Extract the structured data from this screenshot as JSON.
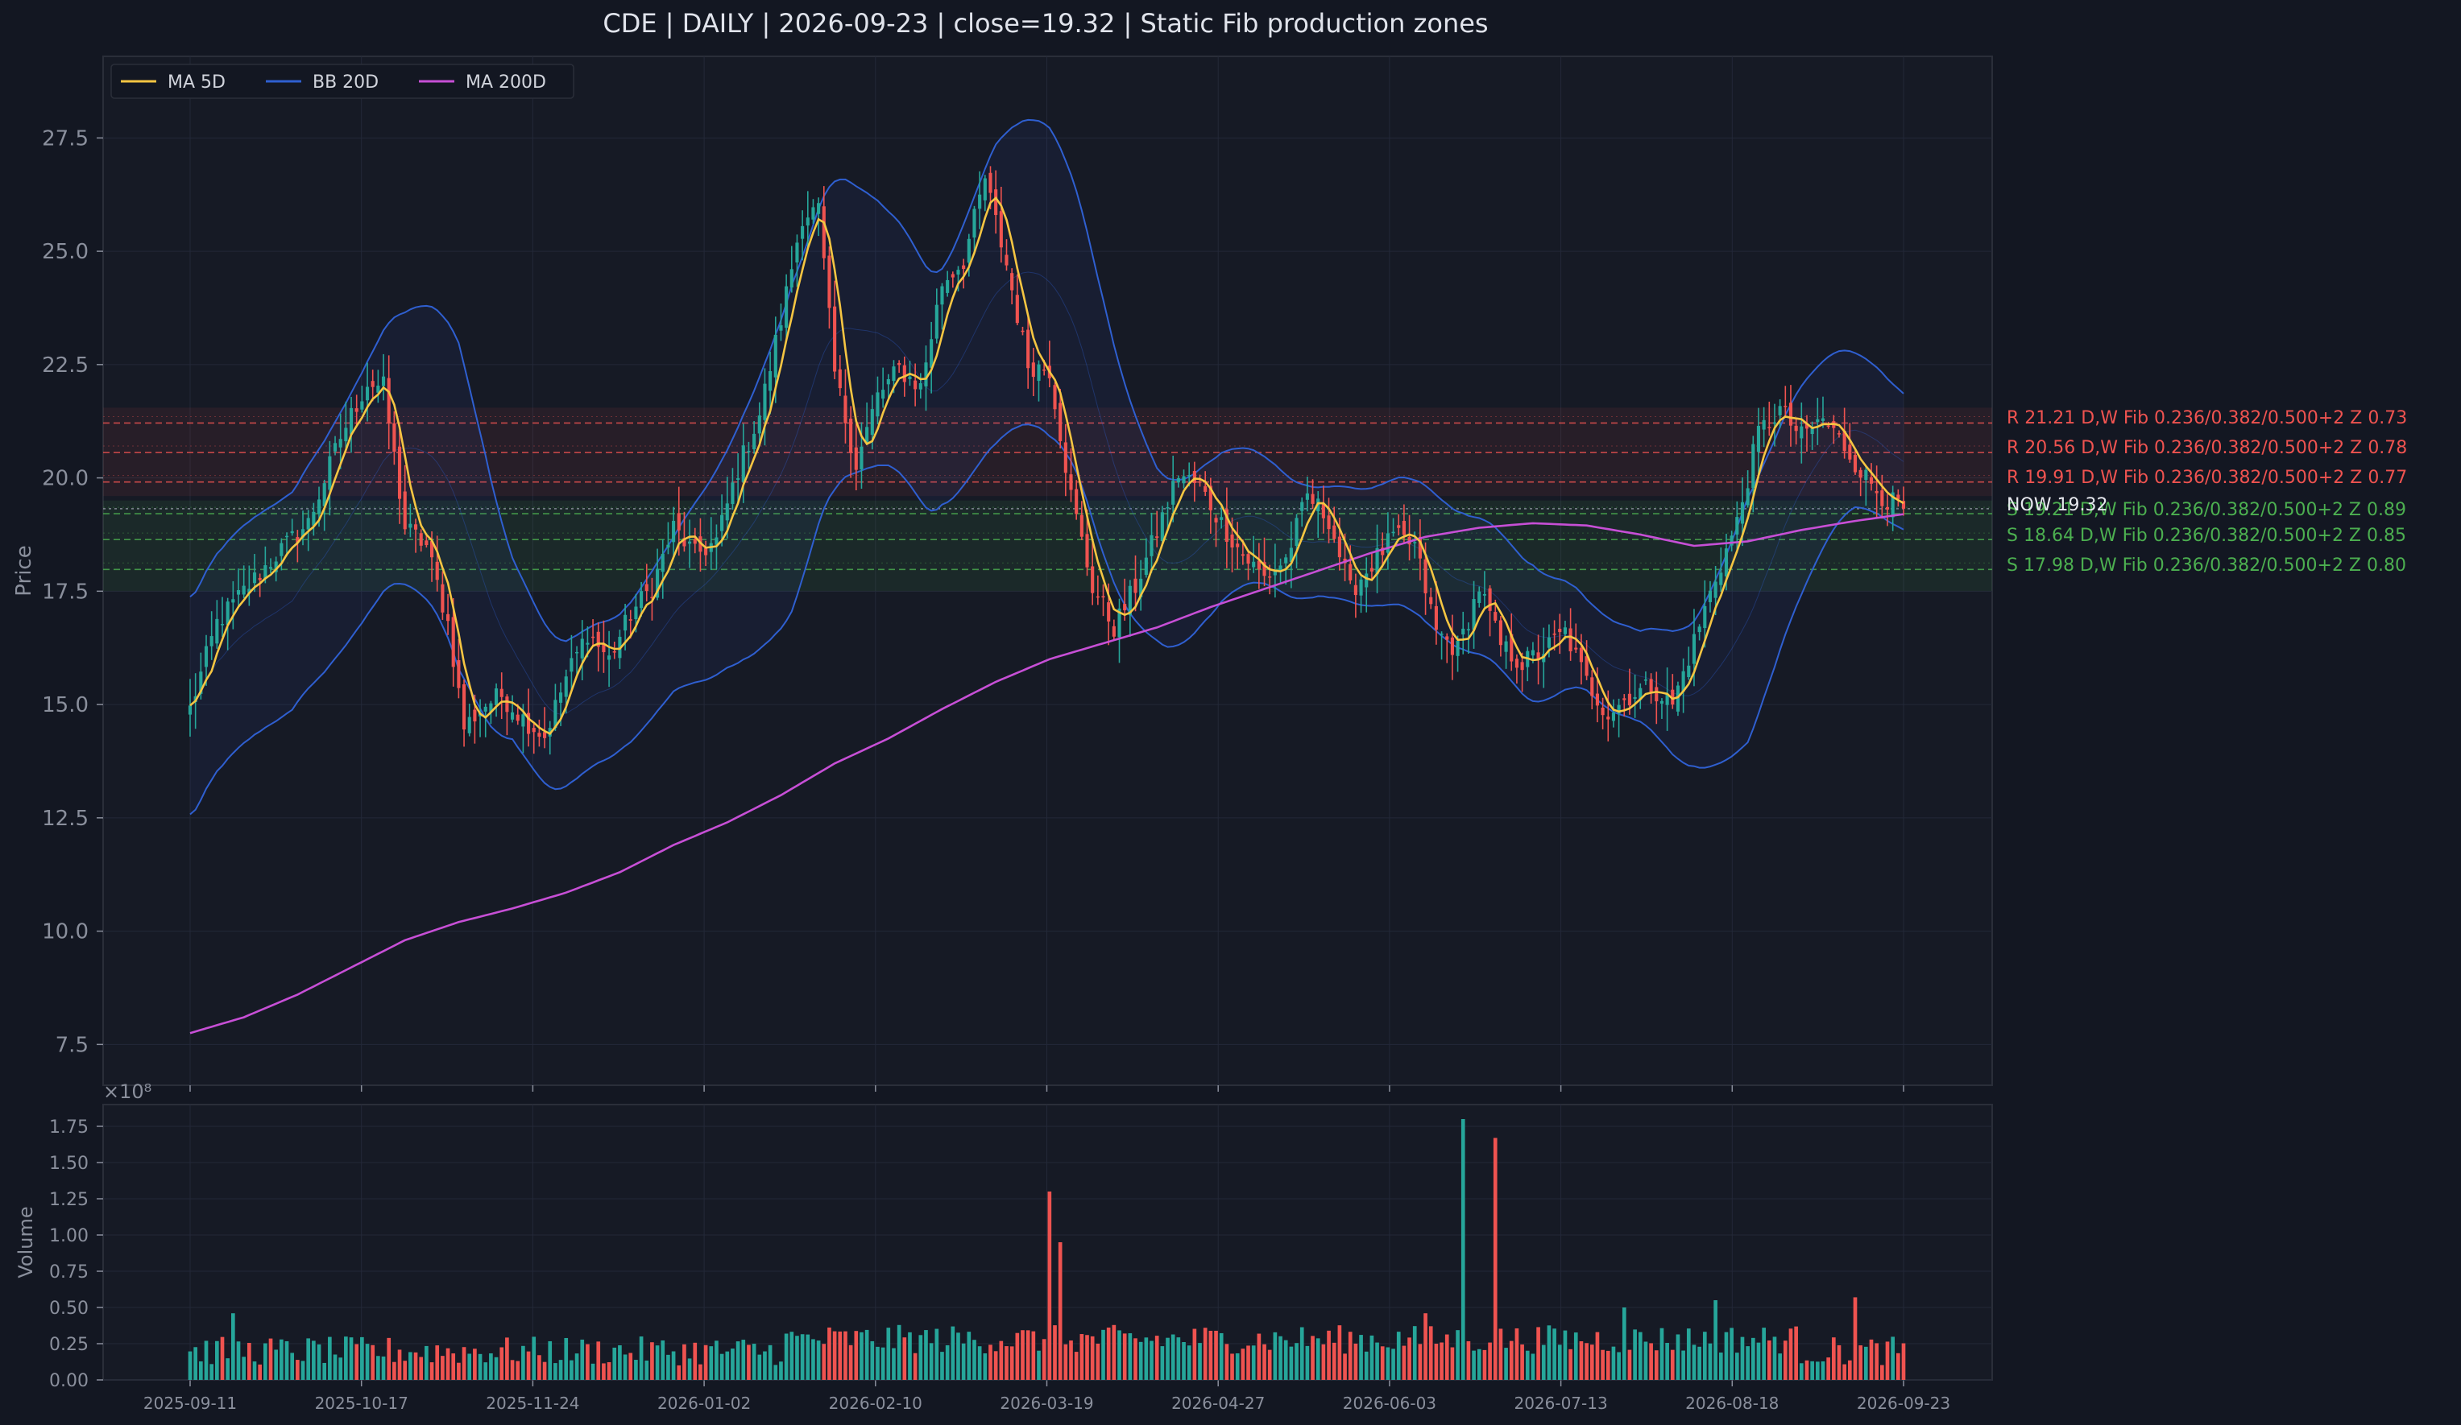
{
  "chart_data": {
    "type": "candlestick",
    "title": "CDE  |  DAILY  |  2026-09-23  |  close=19.32  |  Static Fib production zones",
    "price_panel": {
      "ylabel": "Price",
      "ylim": [
        6.6,
        29.3
      ],
      "yticks": [
        "7.5",
        "10.0",
        "12.5",
        "15.0",
        "17.5",
        "20.0",
        "22.5",
        "25.0",
        "27.5"
      ],
      "grid": true,
      "legend_position": "upper-left",
      "legend": [
        {
          "label": "MA 5D",
          "color": "#f5c542"
        },
        {
          "label": "BB 20D",
          "color": "#2f5fd0"
        },
        {
          "label": "MA 200D",
          "color": "#c74fd6"
        }
      ]
    },
    "volume_panel": {
      "ylabel": "Volume",
      "multiplier": "×10⁸",
      "ylim": [
        0,
        1.9
      ],
      "yticks": [
        "0.00",
        "0.25",
        "0.50",
        "0.75",
        "1.00",
        "1.25",
        "1.50",
        "1.75"
      ]
    },
    "xticks": [
      "2025-09-11",
      "2025-10-17",
      "2025-11-24",
      "2026-01-02",
      "2026-02-10",
      "2026-03-19",
      "2026-04-27",
      "2026-06-03",
      "2026-07-13",
      "2026-08-18",
      "2026-09-23"
    ],
    "close_path": [
      [
        0,
        14.9
      ],
      [
        5,
        16.8
      ],
      [
        10,
        17.5
      ],
      [
        16,
        18.3
      ],
      [
        22,
        19.0
      ],
      [
        28,
        20.9
      ],
      [
        33,
        22.1
      ],
      [
        36,
        22.0
      ],
      [
        40,
        18.9
      ],
      [
        44,
        18.5
      ],
      [
        48,
        16.8
      ],
      [
        51,
        14.5
      ],
      [
        55,
        15.0
      ],
      [
        58,
        15.2
      ],
      [
        62,
        14.7
      ],
      [
        66,
        14.3
      ],
      [
        70,
        15.6
      ],
      [
        74,
        16.6
      ],
      [
        78,
        16.0
      ],
      [
        82,
        17.0
      ],
      [
        86,
        17.6
      ],
      [
        90,
        18.9
      ],
      [
        94,
        18.3
      ],
      [
        98,
        18.6
      ],
      [
        102,
        20.2
      ],
      [
        106,
        21.4
      ],
      [
        110,
        23.5
      ],
      [
        114,
        25.8
      ],
      [
        117,
        25.9
      ],
      [
        120,
        22.3
      ],
      [
        124,
        20.3
      ],
      [
        128,
        21.8
      ],
      [
        132,
        22.4
      ],
      [
        136,
        22.0
      ],
      [
        140,
        24.3
      ],
      [
        144,
        24.8
      ],
      [
        148,
        26.6
      ],
      [
        152,
        24.7
      ],
      [
        156,
        22.5
      ],
      [
        160,
        22.4
      ],
      [
        164,
        19.6
      ],
      [
        168,
        17.6
      ],
      [
        172,
        16.7
      ],
      [
        176,
        17.6
      ],
      [
        180,
        18.8
      ],
      [
        184,
        20.1
      ],
      [
        188,
        19.8
      ],
      [
        192,
        19.0
      ],
      [
        196,
        18.3
      ],
      [
        200,
        17.8
      ],
      [
        204,
        18.2
      ],
      [
        208,
        19.6
      ],
      [
        212,
        19.1
      ],
      [
        216,
        17.5
      ],
      [
        220,
        18.1
      ],
      [
        224,
        18.7
      ],
      [
        228,
        18.5
      ],
      [
        232,
        16.6
      ],
      [
        236,
        16.2
      ],
      [
        240,
        17.6
      ],
      [
        244,
        16.3
      ],
      [
        248,
        15.9
      ],
      [
        252,
        16.2
      ],
      [
        256,
        16.6
      ],
      [
        260,
        15.5
      ],
      [
        264,
        14.8
      ],
      [
        268,
        15.2
      ],
      [
        272,
        15.4
      ],
      [
        276,
        15.0
      ],
      [
        280,
        16.4
      ],
      [
        284,
        17.8
      ],
      [
        288,
        19.0
      ],
      [
        292,
        21.0
      ],
      [
        296,
        21.5
      ],
      [
        300,
        20.9
      ],
      [
        304,
        21.3
      ],
      [
        308,
        20.7
      ],
      [
        312,
        20.0
      ],
      [
        316,
        19.5
      ],
      [
        319,
        19.32
      ]
    ],
    "ma200_path": [
      [
        0,
        7.75
      ],
      [
        10,
        8.1
      ],
      [
        20,
        8.6
      ],
      [
        30,
        9.2
      ],
      [
        40,
        9.8
      ],
      [
        50,
        10.2
      ],
      [
        60,
        10.5
      ],
      [
        70,
        10.85
      ],
      [
        80,
        11.3
      ],
      [
        90,
        11.9
      ],
      [
        100,
        12.4
      ],
      [
        110,
        13.0
      ],
      [
        120,
        13.7
      ],
      [
        130,
        14.25
      ],
      [
        140,
        14.9
      ],
      [
        150,
        15.5
      ],
      [
        160,
        16.0
      ],
      [
        170,
        16.35
      ],
      [
        180,
        16.7
      ],
      [
        190,
        17.15
      ],
      [
        200,
        17.55
      ],
      [
        210,
        17.95
      ],
      [
        220,
        18.35
      ],
      [
        230,
        18.7
      ],
      [
        240,
        18.9
      ],
      [
        250,
        19.0
      ],
      [
        260,
        18.95
      ],
      [
        270,
        18.75
      ],
      [
        280,
        18.5
      ],
      [
        290,
        18.6
      ],
      [
        300,
        18.85
      ],
      [
        310,
        19.05
      ],
      [
        319,
        19.2
      ]
    ],
    "bb_width_path": [
      [
        0,
        2.4
      ],
      [
        20,
        2.4
      ],
      [
        40,
        3.0
      ],
      [
        50,
        3.6
      ],
      [
        55,
        2.9
      ],
      [
        60,
        2.0
      ],
      [
        70,
        1.6
      ],
      [
        80,
        1.5
      ],
      [
        90,
        1.7
      ],
      [
        100,
        2.4
      ],
      [
        112,
        3.6
      ],
      [
        120,
        3.4
      ],
      [
        130,
        2.8
      ],
      [
        140,
        2.6
      ],
      [
        150,
        3.3
      ],
      [
        160,
        3.4
      ],
      [
        170,
        2.8
      ],
      [
        180,
        1.9
      ],
      [
        190,
        1.7
      ],
      [
        200,
        1.4
      ],
      [
        210,
        1.2
      ],
      [
        220,
        1.3
      ],
      [
        230,
        1.5
      ],
      [
        240,
        1.5
      ],
      [
        250,
        1.5
      ],
      [
        260,
        1.0
      ],
      [
        270,
        1.0
      ],
      [
        280,
        1.6
      ],
      [
        290,
        2.7
      ],
      [
        300,
        2.3
      ],
      [
        310,
        1.7
      ],
      [
        319,
        1.5
      ]
    ],
    "volume_spikes": [
      [
        160,
        1.3
      ],
      [
        162,
        0.95
      ],
      [
        237,
        1.8
      ],
      [
        243,
        1.67
      ],
      [
        8,
        0.46
      ],
      [
        230,
        0.46
      ],
      [
        267,
        0.5
      ],
      [
        284,
        0.55
      ],
      [
        310,
        0.57
      ]
    ],
    "zones": [
      {
        "label": "R 21.21  D,W  Fib 0.236/0.382/0.500+2  Z 0.73",
        "price": 21.21,
        "kind": "resistance"
      },
      {
        "label": "R 20.56  D,W  Fib 0.236/0.382/0.500+2  Z 0.78",
        "price": 20.56,
        "kind": "resistance"
      },
      {
        "label": "R 19.91  D,W  Fib 0.236/0.382/0.500+2  Z 0.77",
        "price": 19.91,
        "kind": "resistance"
      },
      {
        "label": "S 19.21  D,W  Fib 0.236/0.382/0.500+2  Z 0.89",
        "price": 19.21,
        "kind": "support"
      },
      {
        "label": "S 18.64  D,W  Fib 0.236/0.382/0.500+2  Z 0.85",
        "price": 18.64,
        "kind": "support"
      },
      {
        "label": "S 17.98  D,W  Fib 0.236/0.382/0.500+2  Z 0.80",
        "price": 17.98,
        "kind": "support"
      }
    ],
    "now_label": "NOW 19.32",
    "colors": {
      "background": "#131722",
      "panel": "#161a25",
      "grid": "#232838",
      "up": "#26a69a",
      "down": "#ef5350",
      "ma5": "#f5c542",
      "bb": "#2f5fd0",
      "ma200": "#c74fd6",
      "resistance": "#ef5350",
      "support": "#4caf50",
      "text": "#d1d4dc",
      "axis_text": "#8a8f9c"
    }
  }
}
